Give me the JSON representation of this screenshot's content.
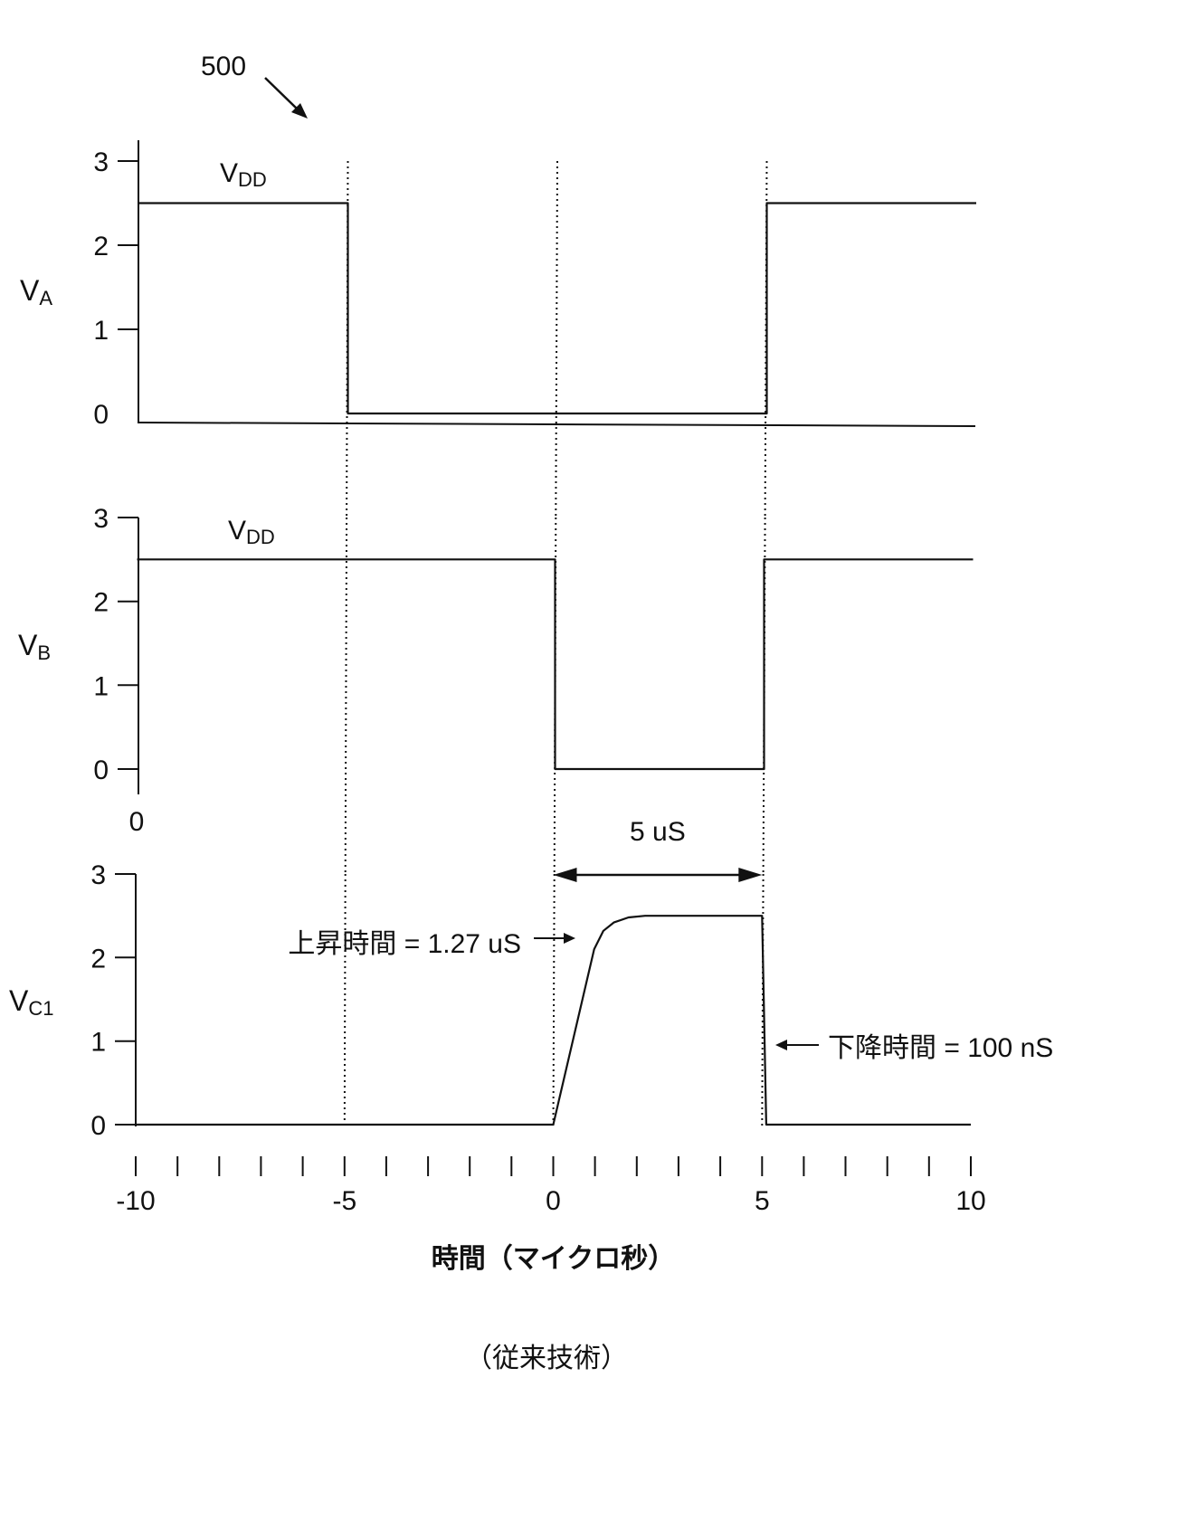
{
  "figure": {
    "reference_numeral": "500",
    "footer": "（従来技術）"
  },
  "chart_data": [
    {
      "type": "line",
      "ylabel": {
        "text": "V",
        "subscript": "A"
      },
      "ylim": [
        0,
        3
      ],
      "yticks": [
        {
          "value": 3,
          "label": "3"
        },
        {
          "value": 2,
          "label": "2"
        },
        {
          "value": 1,
          "label": "1"
        },
        {
          "value": 0,
          "label": "0"
        }
      ],
      "xlim": [
        -10,
        10
      ],
      "vlines": [
        -5,
        0,
        5
      ],
      "vlines_dotted": true,
      "level_annotation": {
        "text": "V",
        "subscript": "DD"
      },
      "series": [
        {
          "x": [
            -10,
            -5,
            -5,
            5,
            5,
            10
          ],
          "y": [
            2.5,
            2.5,
            0,
            0,
            2.5,
            2.5
          ]
        }
      ]
    },
    {
      "type": "line",
      "ylabel": {
        "text": "V",
        "subscript": "B"
      },
      "ylim": [
        0,
        3
      ],
      "yticks": [
        {
          "value": 3,
          "label": "3"
        },
        {
          "value": 2,
          "label": "2"
        },
        {
          "value": 1,
          "label": "1"
        },
        {
          "value": 0,
          "label": "0"
        }
      ],
      "xlim": [
        -10,
        10
      ],
      "vlines": [
        -5,
        0,
        5
      ],
      "vlines_dotted": true,
      "level_annotation": {
        "text": "V",
        "subscript": "DD"
      },
      "axis_foot_label": "0",
      "series": [
        {
          "x": [
            -10,
            0,
            0,
            5,
            5,
            10
          ],
          "y": [
            2.5,
            2.5,
            0,
            0,
            2.5,
            2.5
          ]
        }
      ]
    },
    {
      "type": "line",
      "ylabel": {
        "text": "V",
        "subscript": "C1"
      },
      "ylim": [
        0,
        3
      ],
      "yticks": [
        {
          "value": 3,
          "label": "3"
        },
        {
          "value": 2,
          "label": "2"
        },
        {
          "value": 1,
          "label": "1"
        },
        {
          "value": 0,
          "label": "0"
        }
      ],
      "xlim": [
        -10,
        10
      ],
      "xlabel": "時間（マイクロ秒）",
      "xticks": {
        "values": [
          -10,
          -9,
          -8,
          -7,
          -6,
          -5,
          -4,
          -3,
          -2,
          -1,
          0,
          1,
          2,
          3,
          4,
          5,
          6,
          7,
          8,
          9,
          10
        ],
        "labels": [
          {
            "value": -10,
            "label": "-10"
          },
          {
            "value": -5,
            "label": "-5"
          },
          {
            "value": 0,
            "label": "0"
          },
          {
            "value": 5,
            "label": "5"
          },
          {
            "value": 10,
            "label": "10"
          }
        ]
      },
      "vlines": [
        -5,
        0,
        5
      ],
      "vlines_dotted": true,
      "period_marker": {
        "label": "5 uS",
        "span": [
          0,
          5
        ]
      },
      "rise_time_label": "上昇時間 = 1.27 uS",
      "fall_time_label": "下降時間 = 100 nS",
      "series": [
        {
          "x": [
            -10,
            0,
            0.98,
            1.2,
            1.45,
            1.8,
            2.2,
            5,
            5.1,
            10
          ],
          "y": [
            0,
            0,
            2.1,
            2.32,
            2.42,
            2.48,
            2.5,
            2.5,
            0,
            0
          ]
        }
      ]
    }
  ]
}
